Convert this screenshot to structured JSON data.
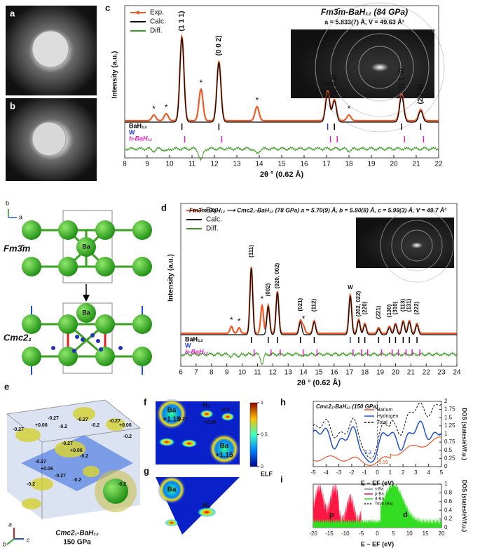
{
  "panel_labels": {
    "a": "a",
    "b": "b",
    "c": "c",
    "d": "d",
    "e": "e",
    "f": "f",
    "g": "g",
    "h": "h",
    "i": "i"
  },
  "c": {
    "title": "Fm3̄m-BaH₁₂ (84 GPa)",
    "subtitle": "a = 5.833(7) Å, V = 49.63 Å³",
    "x_label": "2θ ° (0.62 Å)",
    "y_label": "Intensity (a.u.)",
    "xlim": [
      8,
      22
    ],
    "xticks": [
      8,
      9,
      10,
      11,
      12,
      13,
      14,
      15,
      16,
      17,
      18,
      19,
      20,
      21,
      22
    ],
    "legend": [
      "Exp.",
      "Calc.",
      "Diff."
    ],
    "phases": [
      "BaH₁₂",
      "W",
      "h-BaH₁₂"
    ],
    "peaks": [
      {
        "label": "(1 1 1)",
        "x": 10.55
      },
      {
        "label": "(0 0 2)",
        "x": 12.2
      },
      {
        "label": "W",
        "x": 17.05
      },
      {
        "label": "(2 0 2)",
        "x": 17.35
      },
      {
        "label": "(1 1 3)",
        "x": 20.35
      },
      {
        "label": "(2 2 2)",
        "x": 21.2
      }
    ],
    "stars": [
      {
        "label": "*",
        "x": 9.3
      },
      {
        "label": "*",
        "x": 9.85
      },
      {
        "label": "*",
        "x": 11.4
      },
      {
        "label": "*",
        "x": 13.9
      },
      {
        "label": "*",
        "x": 18.0
      }
    ]
  },
  "structure": {
    "axes": [
      "b",
      "a"
    ],
    "phase_top": "Fm3̄m",
    "phase_bottom": "Cmc2₁",
    "atom": "Ba"
  },
  "d": {
    "title": "Fm3̄m-BaH₁₂ ⟶ Cmc2₁-BaH₁₂ (78 GPa) a = 5.70(9) Å, b = 5.80(8) Å, c = 5.99(3) Å, V = 49.7 Å³",
    "x_label": "2θ ° (0.62 Å)",
    "y_label": "Intensity (a.u.)",
    "xlim": [
      6,
      24
    ],
    "xticks": [
      6,
      7,
      8,
      9,
      10,
      11,
      12,
      13,
      14,
      15,
      16,
      17,
      18,
      19,
      20,
      21,
      22,
      23,
      24
    ],
    "legend": [
      "Exp.",
      "Calc.",
      "Diff."
    ],
    "phases": [
      "BaH₁₂",
      "W",
      "h-BaH₁₂"
    ],
    "peaks": [
      {
        "label": "(111)",
        "x": 10.6
      },
      {
        "label": "(002)",
        "x": 11.7
      },
      {
        "label": "(020, 002)",
        "x": 12.3
      },
      {
        "label": "(021)",
        "x": 13.8
      },
      {
        "label": "(112)",
        "x": 14.7
      },
      {
        "label": "W",
        "x": 17.05
      },
      {
        "label": "(202, 022)",
        "x": 17.6
      },
      {
        "label": "(220)",
        "x": 18.0
      },
      {
        "label": "(221)",
        "x": 18.9
      },
      {
        "label": "(130)",
        "x": 19.6
      },
      {
        "label": "(310)",
        "x": 20.0
      },
      {
        "label": "(113)",
        "x": 20.5
      },
      {
        "label": "(131)",
        "x": 20.9
      },
      {
        "label": "(222)",
        "x": 21.4
      }
    ],
    "stars": [
      {
        "label": "*",
        "x": 9.3
      },
      {
        "label": "*",
        "x": 9.8
      },
      {
        "label": "*",
        "x": 11.3
      },
      {
        "label": "*",
        "x": 14.0
      }
    ]
  },
  "e": {
    "caption": "Cmc2₁-BaH₁₂",
    "pressure": "150 GPa",
    "axes": [
      "a",
      "b",
      "c"
    ],
    "charges": [
      "-0.27",
      "+0.06",
      "-0.27",
      "-0.2",
      "-0.27",
      "-0.2",
      "-0.27",
      "+0.06",
      "-0.2",
      "-0.27",
      "+0.06",
      "-0.2",
      "-0.27",
      "+0.06",
      "-0.27",
      "-0.2",
      "-0.2"
    ]
  },
  "f": {
    "labels": [
      "Ba",
      "+1.15",
      "H₃",
      "-0.27",
      "+0.06",
      "-0.2",
      "Ba",
      "+1.15"
    ],
    "colorbar": {
      "ticks": [
        0,
        0.5,
        1
      ],
      "label": "ELF"
    }
  },
  "g": {
    "labels": [
      "Ba",
      "H₂"
    ]
  },
  "h": {
    "title": "Cmc2₁-BaH₁₂ (150 GPa)",
    "x_label": "E − EF (eV)",
    "y_label": "DOS (states/eV/f.u.)",
    "xlim": [
      -5,
      5
    ],
    "xticks": [
      -5,
      -4,
      -3,
      -2,
      -1,
      0,
      1,
      2,
      3,
      4,
      5
    ],
    "ylim": [
      0,
      2
    ],
    "yticks": [
      0,
      0.25,
      0.5,
      0.75,
      1,
      1.25,
      1.5,
      1.75,
      2
    ],
    "legend": [
      {
        "name": "Barium",
        "color": "#e8572a"
      },
      {
        "name": "Hydrogen",
        "color": "#1f4fd6"
      },
      {
        "name": "Total",
        "color": "#111111"
      }
    ],
    "annotations": [
      "0.3",
      "0.06"
    ]
  },
  "i": {
    "x_label": "E − EF (eV)",
    "y_label": "DOS (states/eV/f.u.)",
    "xlim": [
      -20,
      20
    ],
    "xticks": [
      -20,
      -15,
      -10,
      -5,
      0,
      5,
      10,
      15,
      20
    ],
    "ylim": [
      0,
      1
    ],
    "yticks": [
      0,
      0.2,
      0.4,
      0.6,
      0.8,
      1
    ],
    "legend": [
      {
        "name": "s-Ba",
        "color": "#888888"
      },
      {
        "name": "p-Ba",
        "color": "#ff1744"
      },
      {
        "name": "d-Ba",
        "color": "#33dd22"
      },
      {
        "name": "Total (Ba)",
        "color": "#111111"
      }
    ],
    "annotations": [
      "p",
      "d"
    ]
  }
}
